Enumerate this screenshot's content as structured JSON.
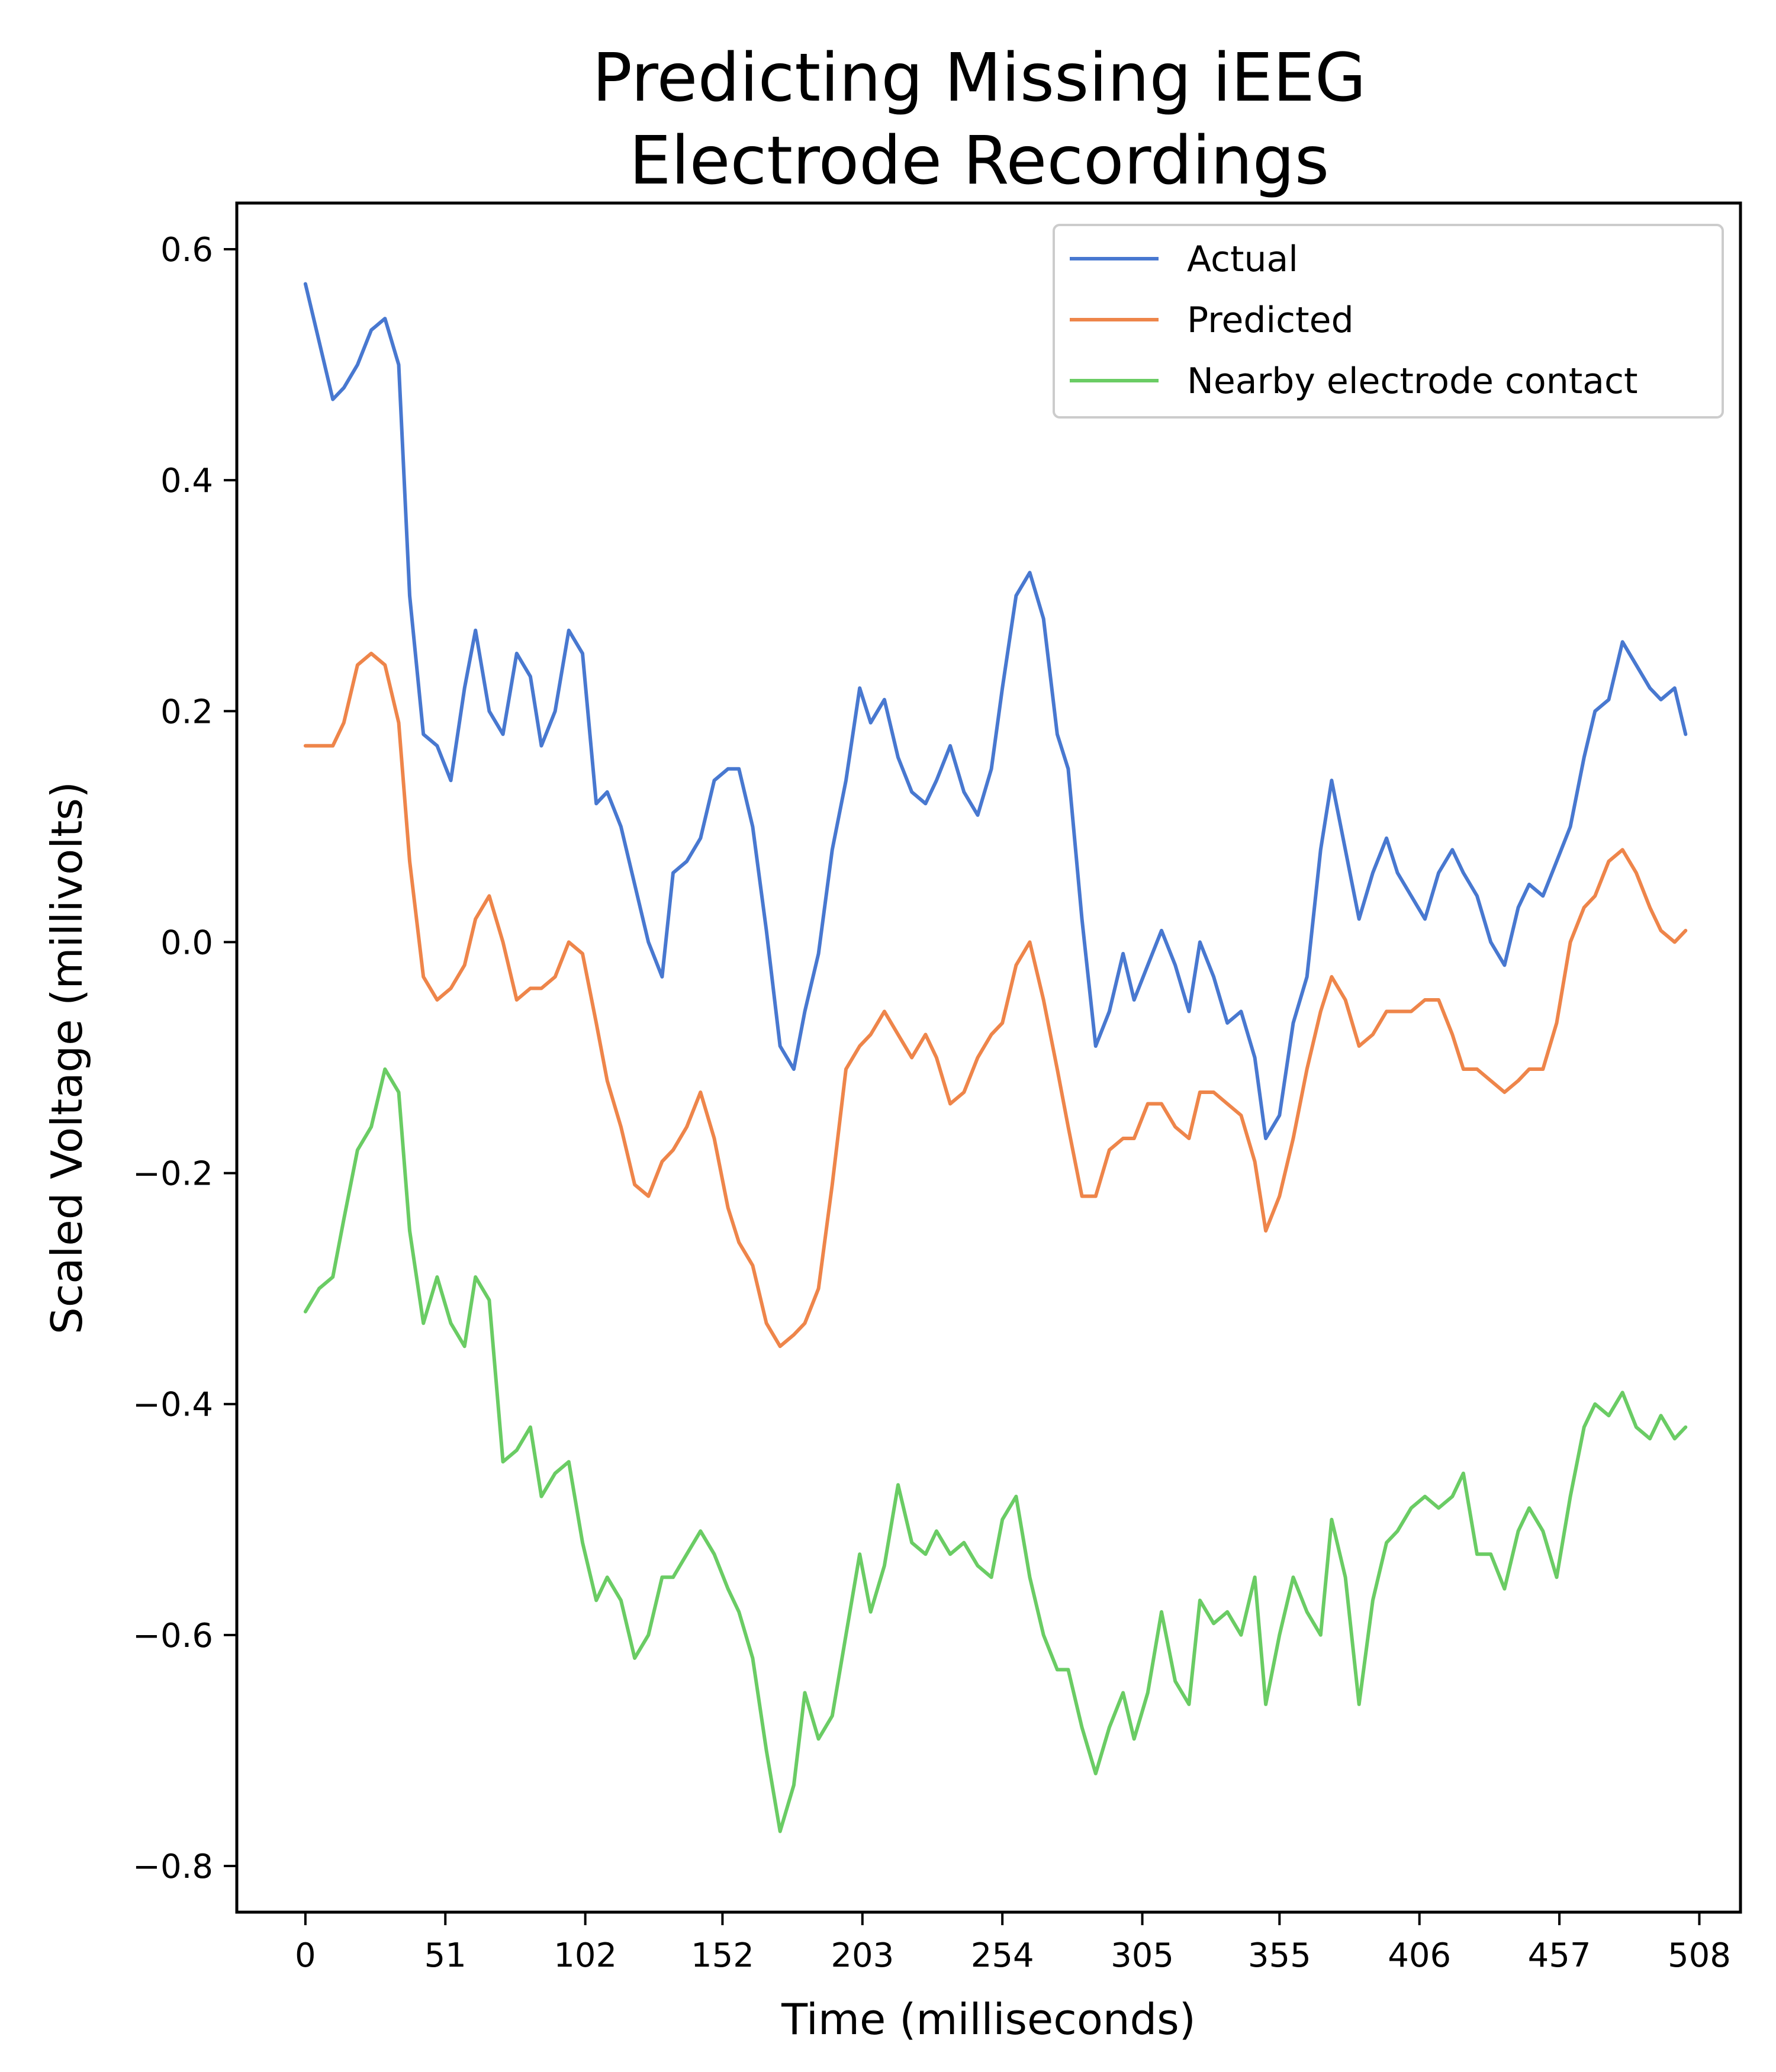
{
  "chart_data": {
    "type": "line",
    "title_lines": [
      "Predicting Missing iEEG",
      "Electrode Recordings"
    ],
    "xlabel": "Time (milliseconds)",
    "ylabel": "Scaled Voltage (millivolts)",
    "xlim": [
      -25,
      523
    ],
    "ylim": [
      -0.84,
      0.64
    ],
    "xticks": [
      0,
      51,
      102,
      152,
      203,
      254,
      305,
      355,
      406,
      457,
      508
    ],
    "yticks": [
      0.6,
      0.4,
      0.2,
      0.0,
      -0.2,
      -0.4,
      -0.6,
      -0.8
    ],
    "ytick_labels": [
      "0.6",
      "0.4",
      "0.2",
      "0.0",
      "−0.2",
      "−0.4",
      "−0.6",
      "−0.8"
    ],
    "grid": false,
    "legend_position": "top-right",
    "series": [
      {
        "name": "Actual",
        "color": "#4878d0",
        "x": [
          0,
          5,
          10,
          14,
          19,
          24,
          29,
          34,
          38,
          43,
          48,
          53,
          58,
          62,
          67,
          72,
          77,
          82,
          86,
          91,
          96,
          101,
          106,
          110,
          115,
          120,
          125,
          130,
          134,
          139,
          144,
          149,
          154,
          158,
          163,
          168,
          173,
          178,
          182,
          187,
          192,
          197,
          202,
          206,
          211,
          216,
          221,
          226,
          230,
          235,
          240,
          245,
          250,
          254,
          259,
          264,
          269,
          274,
          278,
          283,
          288,
          293,
          298,
          302,
          307,
          312,
          317,
          322,
          326,
          331,
          336,
          341,
          346,
          350,
          355,
          360,
          365,
          370,
          374,
          379,
          384,
          389,
          394,
          398,
          403,
          408,
          413,
          418,
          422,
          427,
          432,
          437,
          442,
          446,
          451,
          456,
          461,
          466,
          470,
          475,
          480,
          485,
          490,
          494,
          499,
          503
        ],
        "y": [
          0.57,
          0.52,
          0.47,
          0.48,
          0.5,
          0.53,
          0.54,
          0.5,
          0.3,
          0.18,
          0.17,
          0.14,
          0.22,
          0.27,
          0.2,
          0.18,
          0.25,
          0.23,
          0.17,
          0.2,
          0.27,
          0.25,
          0.12,
          0.13,
          0.1,
          0.05,
          0.0,
          -0.03,
          0.06,
          0.07,
          0.09,
          0.14,
          0.15,
          0.15,
          0.1,
          0.01,
          -0.09,
          -0.11,
          -0.06,
          -0.01,
          0.08,
          0.14,
          0.22,
          0.19,
          0.21,
          0.16,
          0.13,
          0.12,
          0.14,
          0.17,
          0.13,
          0.11,
          0.15,
          0.22,
          0.3,
          0.32,
          0.28,
          0.18,
          0.15,
          0.02,
          -0.09,
          -0.06,
          -0.01,
          -0.05,
          -0.02,
          0.01,
          -0.02,
          -0.06,
          0.0,
          -0.03,
          -0.07,
          -0.06,
          -0.1,
          -0.17,
          -0.15,
          -0.07,
          -0.03,
          0.08,
          0.14,
          0.08,
          0.02,
          0.06,
          0.09,
          0.06,
          0.04,
          0.02,
          0.06,
          0.08,
          0.06,
          0.04,
          0.0,
          -0.02,
          0.03,
          0.05,
          0.04,
          0.07,
          0.1,
          0.16,
          0.2,
          0.21,
          0.26,
          0.24,
          0.22,
          0.21,
          0.22,
          0.18
        ]
      },
      {
        "name": "Predicted",
        "color": "#ee854a",
        "x": [
          0,
          5,
          10,
          14,
          19,
          24,
          29,
          34,
          38,
          43,
          48,
          53,
          58,
          62,
          67,
          72,
          77,
          82,
          86,
          91,
          96,
          101,
          106,
          110,
          115,
          120,
          125,
          130,
          134,
          139,
          144,
          149,
          154,
          158,
          163,
          168,
          173,
          178,
          182,
          187,
          192,
          197,
          202,
          206,
          211,
          216,
          221,
          226,
          230,
          235,
          240,
          245,
          250,
          254,
          259,
          264,
          269,
          274,
          278,
          283,
          288,
          293,
          298,
          302,
          307,
          312,
          317,
          322,
          326,
          331,
          336,
          341,
          346,
          350,
          355,
          360,
          365,
          370,
          374,
          379,
          384,
          389,
          394,
          398,
          403,
          408,
          413,
          418,
          422,
          427,
          432,
          437,
          442,
          446,
          451,
          456,
          461,
          466,
          470,
          475,
          480,
          485,
          490,
          494,
          499,
          503
        ],
        "y": [
          0.17,
          0.17,
          0.17,
          0.19,
          0.24,
          0.25,
          0.24,
          0.19,
          0.07,
          -0.03,
          -0.05,
          -0.04,
          -0.02,
          0.02,
          0.04,
          0.0,
          -0.05,
          -0.04,
          -0.04,
          -0.03,
          0.0,
          -0.01,
          -0.07,
          -0.12,
          -0.16,
          -0.21,
          -0.22,
          -0.19,
          -0.18,
          -0.16,
          -0.13,
          -0.17,
          -0.23,
          -0.26,
          -0.28,
          -0.33,
          -0.35,
          -0.34,
          -0.33,
          -0.3,
          -0.21,
          -0.11,
          -0.09,
          -0.08,
          -0.06,
          -0.08,
          -0.1,
          -0.08,
          -0.1,
          -0.14,
          -0.13,
          -0.1,
          -0.08,
          -0.07,
          -0.02,
          0.0,
          -0.05,
          -0.11,
          -0.16,
          -0.22,
          -0.22,
          -0.18,
          -0.17,
          -0.17,
          -0.14,
          -0.14,
          -0.16,
          -0.17,
          -0.13,
          -0.13,
          -0.14,
          -0.15,
          -0.19,
          -0.25,
          -0.22,
          -0.17,
          -0.11,
          -0.06,
          -0.03,
          -0.05,
          -0.09,
          -0.08,
          -0.06,
          -0.06,
          -0.06,
          -0.05,
          -0.05,
          -0.08,
          -0.11,
          -0.11,
          -0.12,
          -0.13,
          -0.12,
          -0.11,
          -0.11,
          -0.07,
          0.0,
          0.03,
          0.04,
          0.07,
          0.08,
          0.06,
          0.03,
          0.01,
          0.0,
          0.01
        ]
      },
      {
        "name": "Nearby electrode contact",
        "color": "#6acc64",
        "x": [
          0,
          5,
          10,
          14,
          19,
          24,
          29,
          34,
          38,
          43,
          48,
          53,
          58,
          62,
          67,
          72,
          77,
          82,
          86,
          91,
          96,
          101,
          106,
          110,
          115,
          120,
          125,
          130,
          134,
          139,
          144,
          149,
          154,
          158,
          163,
          168,
          173,
          178,
          182,
          187,
          192,
          197,
          202,
          206,
          211,
          216,
          221,
          226,
          230,
          235,
          240,
          245,
          250,
          254,
          259,
          264,
          269,
          274,
          278,
          283,
          288,
          293,
          298,
          302,
          307,
          312,
          317,
          322,
          326,
          331,
          336,
          341,
          346,
          350,
          355,
          360,
          365,
          370,
          374,
          379,
          384,
          389,
          394,
          398,
          403,
          408,
          413,
          418,
          422,
          427,
          432,
          437,
          442,
          446,
          451,
          456,
          461,
          466,
          470,
          475,
          480,
          485,
          490,
          494,
          499,
          503
        ],
        "y": [
          -0.32,
          -0.3,
          -0.29,
          -0.24,
          -0.18,
          -0.16,
          -0.11,
          -0.13,
          -0.25,
          -0.33,
          -0.29,
          -0.33,
          -0.35,
          -0.29,
          -0.31,
          -0.45,
          -0.44,
          -0.42,
          -0.48,
          -0.46,
          -0.45,
          -0.52,
          -0.57,
          -0.55,
          -0.57,
          -0.62,
          -0.6,
          -0.55,
          -0.55,
          -0.53,
          -0.51,
          -0.53,
          -0.56,
          -0.58,
          -0.62,
          -0.7,
          -0.77,
          -0.73,
          -0.65,
          -0.69,
          -0.67,
          -0.6,
          -0.53,
          -0.58,
          -0.54,
          -0.47,
          -0.52,
          -0.53,
          -0.51,
          -0.53,
          -0.52,
          -0.54,
          -0.55,
          -0.5,
          -0.48,
          -0.55,
          -0.6,
          -0.63,
          -0.63,
          -0.68,
          -0.72,
          -0.68,
          -0.65,
          -0.69,
          -0.65,
          -0.58,
          -0.64,
          -0.66,
          -0.57,
          -0.59,
          -0.58,
          -0.6,
          -0.55,
          -0.66,
          -0.6,
          -0.55,
          -0.58,
          -0.6,
          -0.5,
          -0.55,
          -0.66,
          -0.57,
          -0.52,
          -0.51,
          -0.49,
          -0.48,
          -0.49,
          -0.48,
          -0.46,
          -0.53,
          -0.53,
          -0.56,
          -0.51,
          -0.49,
          -0.51,
          -0.55,
          -0.48,
          -0.42,
          -0.4,
          -0.41,
          -0.39,
          -0.42,
          -0.43,
          -0.41,
          -0.43,
          -0.42
        ]
      }
    ]
  }
}
